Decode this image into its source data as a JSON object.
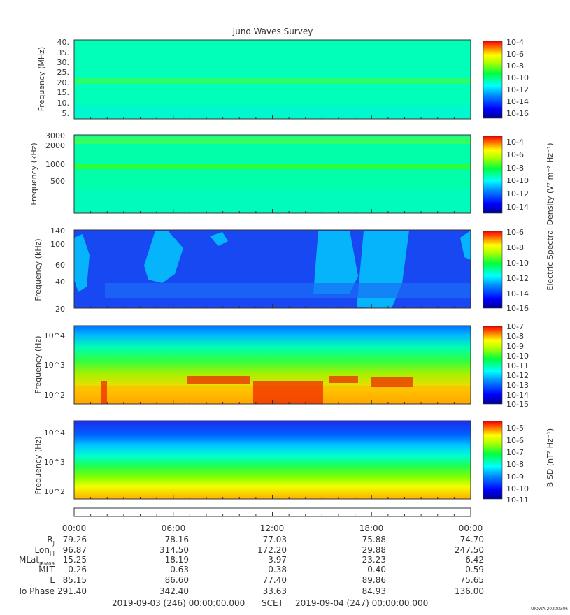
{
  "title": "Juno Waves Survey",
  "footer": {
    "start": "2019-09-03 (246) 00:00:00.000",
    "scet": "SCET",
    "end": "2019-09-04 (247) 00:00:00.000",
    "stamp": "UIOWA 20200306"
  },
  "x_ticks": [
    "00:00",
    "06:00",
    "12:00",
    "18:00",
    "00:00"
  ],
  "ephemeris": [
    {
      "label": "R",
      "sub": "J",
      "values": [
        "79.26",
        "78.16",
        "77.03",
        "75.88",
        "74.70"
      ]
    },
    {
      "label": "Lon",
      "sub": "III",
      "values": [
        "96.87",
        "314.50",
        "172.20",
        "29.88",
        "247.50"
      ]
    },
    {
      "label": "MLat",
      "sub": "JRM09",
      "values": [
        "-15.25",
        "-18.19",
        "-3.97",
        "-23.23",
        "-6.42"
      ]
    },
    {
      "label": "MLT",
      "sub": "",
      "values": [
        "0.26",
        "0.63",
        "0.38",
        "0.40",
        "0.59"
      ]
    },
    {
      "label": "L",
      "sub": "",
      "values": [
        "85.15",
        "86.60",
        "77.40",
        "89.86",
        "75.65"
      ]
    },
    {
      "label": "Io Phase",
      "sub": "",
      "values": [
        "291.40",
        "342.40",
        "33.63",
        "84.93",
        "136.00"
      ]
    }
  ],
  "esd_label": "Electric Spectral Density (V² m⁻² Hz⁻¹)",
  "bsd_label": "B SD (nT² Hz⁻¹)",
  "chart_data": [
    {
      "type": "heatmap",
      "ylabel": "Frequency (MHz)",
      "y_ticks": [
        "40.",
        "35.",
        "30.",
        "25.",
        "20.",
        "15.",
        "10.",
        "5."
      ],
      "ylim": [
        3,
        41
      ],
      "colorbar_ticks": [
        "10-4",
        "10-6",
        "10-8",
        "10-10",
        "10-12",
        "10-14",
        "10-16"
      ],
      "colorbar_range_exp": [
        -17,
        -4
      ],
      "features": "uniform background ~1e-12 with a brighter band near 21 MHz (~1e-10)"
    },
    {
      "type": "heatmap",
      "ylabel": "Frequency (kHz)",
      "y_ticks": [
        "3000",
        "2000",
        "1000",
        "500"
      ],
      "ylim": [
        140,
        3000
      ],
      "y_scale": "log",
      "colorbar_ticks": [
        "10-4",
        "10-6",
        "10-8",
        "10-10",
        "10-12",
        "10-14"
      ],
      "colorbar_range_exp": [
        -15,
        -3
      ],
      "features": "uniform background ~1e-12 with brighter bands near 900 kHz and 2500 kHz"
    },
    {
      "type": "heatmap",
      "ylabel": "Frequency (kHz)",
      "y_ticks": [
        "140",
        "100",
        "60",
        "40",
        "20"
      ],
      "ylim": [
        20,
        140
      ],
      "colorbar_ticks": [
        "10-6",
        "10-8",
        "10-10",
        "10-12",
        "10-14",
        "10-16"
      ],
      "colorbar_range_exp": [
        -16,
        -6
      ],
      "features": "background ~1e-14 with bursty emissions near 00:30, 05:00, 15:00-19:30 and 23:45"
    },
    {
      "type": "heatmap",
      "ylabel": "Frequency (Hz)",
      "y_ticks": [
        "10^4",
        "10^3",
        "10^2"
      ],
      "ylim": [
        50,
        20000
      ],
      "y_scale": "log",
      "colorbar_ticks": [
        "10-7",
        "10-8",
        "10-9",
        "10-10",
        "10-11",
        "10-12",
        "10-13",
        "10-14",
        "10-15"
      ],
      "colorbar_range_exp": [
        -15,
        -7
      ],
      "features": "intense low-frequency emission below ~400 Hz, strongest near 07:30-08:30 and 11:00-15:00"
    },
    {
      "type": "heatmap",
      "ylabel": "Frequency (Hz)",
      "y_ticks": [
        "10^4",
        "10^3",
        "10^2"
      ],
      "ylim": [
        50,
        20000
      ],
      "y_scale": "log",
      "colorbar_ticks": [
        "10-5",
        "10-6",
        "10-7",
        "10-8",
        "10-9",
        "10-10",
        "10-11"
      ],
      "colorbar_range_exp": [
        -11,
        -4.6
      ],
      "features": "magnetic spectral density decreasing with frequency: ~1e-6 at 100 Hz to ~1e-11 above 10 kHz"
    }
  ]
}
